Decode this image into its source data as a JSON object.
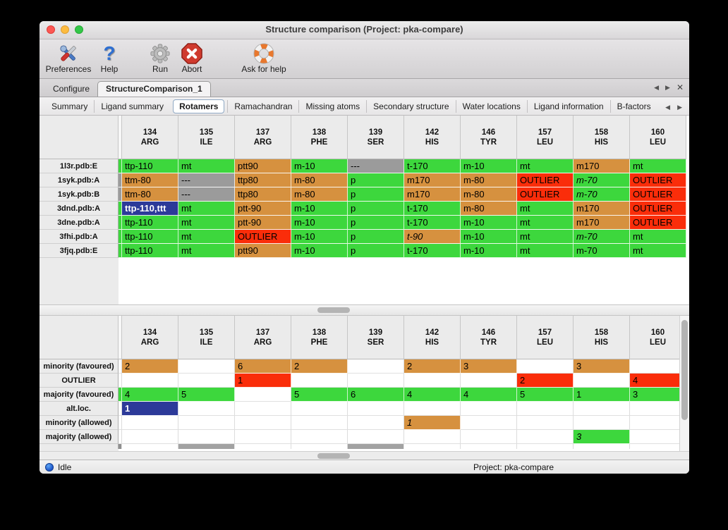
{
  "window": {
    "title": "Structure comparison (Project: pka-compare)"
  },
  "toolbar": {
    "items": [
      {
        "label": "Preferences",
        "icon": "preferences-icon"
      },
      {
        "label": "Help",
        "icon": "help-icon"
      },
      {
        "label": "Run",
        "icon": "run-icon"
      },
      {
        "label": "Abort",
        "icon": "abort-icon"
      },
      {
        "label": "Ask for help",
        "icon": "ask-for-help-icon"
      }
    ]
  },
  "tabs": {
    "items": [
      {
        "label": "Configure",
        "active": false
      },
      {
        "label": "StructureComparison_1",
        "active": true
      }
    ]
  },
  "subtabs": {
    "items": [
      "Summary",
      "Ligand summary",
      "Rotamers",
      "Ramachandran",
      "Missing atoms",
      "Secondary structure",
      "Water locations",
      "Ligand information",
      "B-factors"
    ],
    "selected": "Rotamers"
  },
  "glyphs": {
    "left": "◀",
    "right": "▶",
    "close": "✕",
    "help": "?"
  },
  "colors": {
    "g": "#3dd73d",
    "o": "#d6913f",
    "r": "#fa2d0a",
    "x": "#9b9b9b",
    "b": "#2c3a99",
    "p": "#a2a2a2",
    "sd": "#8f8f8f",
    "n": "#ffffff"
  },
  "columns": [
    {
      "num": "134",
      "res": "ARG"
    },
    {
      "num": "135",
      "res": "ILE"
    },
    {
      "num": "137",
      "res": "ARG"
    },
    {
      "num": "138",
      "res": "PHE"
    },
    {
      "num": "139",
      "res": "SER"
    },
    {
      "num": "142",
      "res": "HIS"
    },
    {
      "num": "146",
      "res": "TYR"
    },
    {
      "num": "157",
      "res": "LEU"
    },
    {
      "num": "158",
      "res": "HIS"
    },
    {
      "num": "160",
      "res": "LEU"
    }
  ],
  "top_table": {
    "rows": [
      {
        "label": "1l3r.pdb:E",
        "strip": "g",
        "cells": [
          [
            "ttp-110",
            "g"
          ],
          [
            "mt",
            "g"
          ],
          [
            "ptt90",
            "o"
          ],
          [
            "m-10",
            "g"
          ],
          [
            "---",
            "x"
          ],
          [
            "t-170",
            "g"
          ],
          [
            "m-10",
            "g"
          ],
          [
            "mt",
            "g"
          ],
          [
            "m170",
            "o"
          ],
          [
            "mt",
            "g"
          ]
        ]
      },
      {
        "label": "1syk.pdb:A",
        "strip": "x",
        "cells": [
          [
            "ttm-80",
            "o"
          ],
          [
            "---",
            "x"
          ],
          [
            "ttp80",
            "o"
          ],
          [
            "m-80",
            "o"
          ],
          [
            "p",
            "g"
          ],
          [
            "m170",
            "o"
          ],
          [
            "m-80",
            "o"
          ],
          [
            "OUTLIER",
            "r"
          ],
          [
            "m-70",
            "g",
            "i"
          ],
          [
            "OUTLIER",
            "r"
          ]
        ]
      },
      {
        "label": "1syk.pdb:B",
        "strip": "x",
        "cells": [
          [
            "ttm-80",
            "o"
          ],
          [
            "---",
            "x"
          ],
          [
            "ttp80",
            "o"
          ],
          [
            "m-80",
            "o"
          ],
          [
            "p",
            "g"
          ],
          [
            "m170",
            "o"
          ],
          [
            "m-80",
            "o"
          ],
          [
            "OUTLIER",
            "r"
          ],
          [
            "m-70",
            "g",
            "i"
          ],
          [
            "OUTLIER",
            "r"
          ]
        ]
      },
      {
        "label": "3dnd.pdb:A",
        "strip": "g",
        "cells": [
          [
            "ttp-110,ttt",
            "b"
          ],
          [
            "mt",
            "g"
          ],
          [
            "ptt-90",
            "o"
          ],
          [
            "m-10",
            "g"
          ],
          [
            "p",
            "g"
          ],
          [
            "t-170",
            "g"
          ],
          [
            "m-80",
            "o"
          ],
          [
            "mt",
            "g"
          ],
          [
            "m170",
            "o"
          ],
          [
            "OUTLIER",
            "r"
          ]
        ]
      },
      {
        "label": "3dne.pdb:A",
        "strip": "g",
        "cells": [
          [
            "ttp-110",
            "g"
          ],
          [
            "mt",
            "g"
          ],
          [
            "ptt-90",
            "o"
          ],
          [
            "m-10",
            "g"
          ],
          [
            "p",
            "g"
          ],
          [
            "t-170",
            "g"
          ],
          [
            "m-10",
            "g"
          ],
          [
            "mt",
            "g"
          ],
          [
            "m170",
            "o"
          ],
          [
            "OUTLIER",
            "r"
          ]
        ]
      },
      {
        "label": "3fhi.pdb:A",
        "strip": "g",
        "cells": [
          [
            "ttp-110",
            "g"
          ],
          [
            "mt",
            "g"
          ],
          [
            "OUTLIER",
            "r"
          ],
          [
            "m-10",
            "g"
          ],
          [
            "p",
            "g"
          ],
          [
            "t-90",
            "o",
            "i"
          ],
          [
            "m-10",
            "g"
          ],
          [
            "mt",
            "g"
          ],
          [
            "m-70",
            "g",
            "i"
          ],
          [
            "mt",
            "g"
          ]
        ]
      },
      {
        "label": "3fjq.pdb:E",
        "strip": "g",
        "cells": [
          [
            "ttp-110",
            "g"
          ],
          [
            "mt",
            "g"
          ],
          [
            "ptt90",
            "o"
          ],
          [
            "m-10",
            "g"
          ],
          [
            "p",
            "g"
          ],
          [
            "t-170",
            "g"
          ],
          [
            "m-10",
            "g"
          ],
          [
            "mt",
            "g"
          ],
          [
            "m-70",
            "g"
          ],
          [
            "mt",
            "g"
          ]
        ]
      }
    ]
  },
  "bottom_table": {
    "rows": [
      {
        "label": "minority (favoured)",
        "strip": null,
        "cells": [
          [
            "2",
            "o"
          ],
          null,
          [
            "6",
            "o"
          ],
          [
            "2",
            "o"
          ],
          null,
          [
            "2",
            "o"
          ],
          [
            "3",
            "o"
          ],
          null,
          [
            "3",
            "o"
          ],
          null
        ]
      },
      {
        "label": "OUTLIER",
        "strip": null,
        "cells": [
          null,
          null,
          [
            "1",
            "r"
          ],
          null,
          null,
          null,
          null,
          [
            "2",
            "r"
          ],
          null,
          [
            "4",
            "r"
          ]
        ]
      },
      {
        "label": "majority (favoured)",
        "strip": "g",
        "cells": [
          [
            "4",
            "g"
          ],
          [
            "5",
            "g"
          ],
          null,
          [
            "5",
            "g"
          ],
          [
            "6",
            "g"
          ],
          [
            "4",
            "g"
          ],
          [
            "4",
            "g"
          ],
          [
            "5",
            "g"
          ],
          [
            "1",
            "g"
          ],
          [
            "3",
            "g"
          ]
        ]
      },
      {
        "label": "alt.loc.",
        "strip": null,
        "cells": [
          [
            "1",
            "b"
          ],
          null,
          null,
          null,
          null,
          null,
          null,
          null,
          null,
          null
        ]
      },
      {
        "label": "minority (allowed)",
        "strip": null,
        "cells": [
          null,
          null,
          null,
          null,
          null,
          [
            "1",
            "o",
            "i"
          ],
          null,
          null,
          null,
          null
        ]
      },
      {
        "label": "majority (allowed)",
        "strip": null,
        "cells": [
          null,
          null,
          null,
          null,
          null,
          null,
          null,
          null,
          [
            "3",
            "g",
            "i"
          ],
          null
        ]
      }
    ],
    "partial_row": {
      "strip": "sd",
      "cells": [
        null,
        [
          "",
          "p"
        ],
        null,
        null,
        [
          "",
          "p"
        ],
        null,
        null,
        null,
        null,
        null
      ]
    }
  },
  "statusbar": {
    "status": "Idle",
    "project": "Project: pka-compare"
  }
}
